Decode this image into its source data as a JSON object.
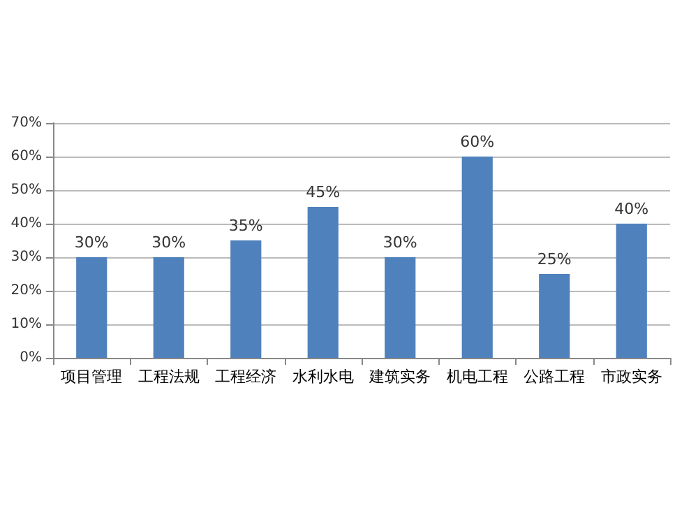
{
  "chart_data": {
    "type": "bar",
    "categories": [
      "项目管理",
      "工程法规",
      "工程经济",
      "水利水电",
      "建筑实务",
      "机电工程",
      "公路工程",
      "市政实务"
    ],
    "values": [
      30,
      30,
      35,
      45,
      30,
      60,
      25,
      40
    ],
    "value_labels": [
      "30%",
      "30%",
      "35%",
      "45%",
      "30%",
      "60%",
      "25%",
      "40%"
    ],
    "color": "#4f81bd",
    "ylim": [
      0,
      70
    ],
    "yticks": [
      {
        "value": 0,
        "label": "0%"
      },
      {
        "value": 10,
        "label": "10%"
      },
      {
        "value": 20,
        "label": "20%"
      },
      {
        "value": 30,
        "label": "30%"
      },
      {
        "value": 40,
        "label": "40%"
      },
      {
        "value": 50,
        "label": "50%"
      },
      {
        "value": 60,
        "label": "60%"
      },
      {
        "value": 70,
        "label": "70%"
      }
    ],
    "grid": "y"
  }
}
